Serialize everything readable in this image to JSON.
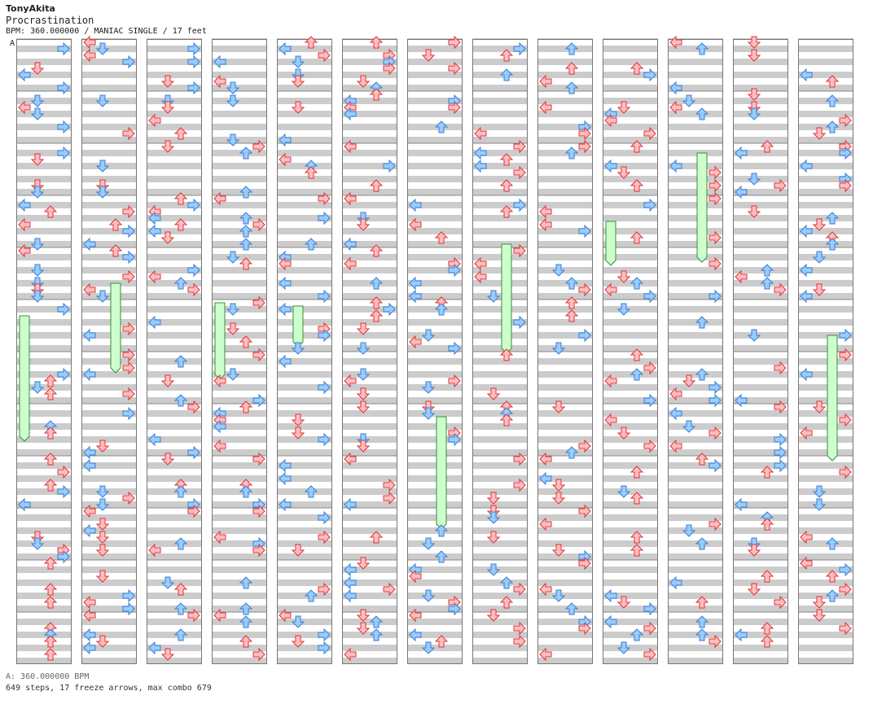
{
  "header": {
    "author": "TonyAkita",
    "title": "Procrastination",
    "subtitle": "BPM: 360.000000 / MANIAC SINGLE / 17 feet"
  },
  "bpm_marker": "A",
  "footer": {
    "bpm": "A: 360.000000 BPM",
    "stats": "649 steps, 17 freeze arrows, max combo 679"
  },
  "colors": {
    "stripe": "#cccccc",
    "red_fill": "#ffbfbf",
    "red_stroke": "#e0303a",
    "blue_fill": "#99ccff",
    "blue_stroke": "#3a7fd0",
    "freeze_fill": "#ccffcc",
    "freeze_stroke": "#3c8c3c"
  },
  "chart_data": {
    "type": "step-chart",
    "mode": "MANIAC SINGLE",
    "difficulty_feet": 17,
    "bpm": 360,
    "columns": 13,
    "measures_per_column": 12,
    "lanes": [
      "left",
      "down",
      "up",
      "right"
    ],
    "total_steps": 649,
    "freeze_arrows": 17,
    "max_combo": 679
  }
}
